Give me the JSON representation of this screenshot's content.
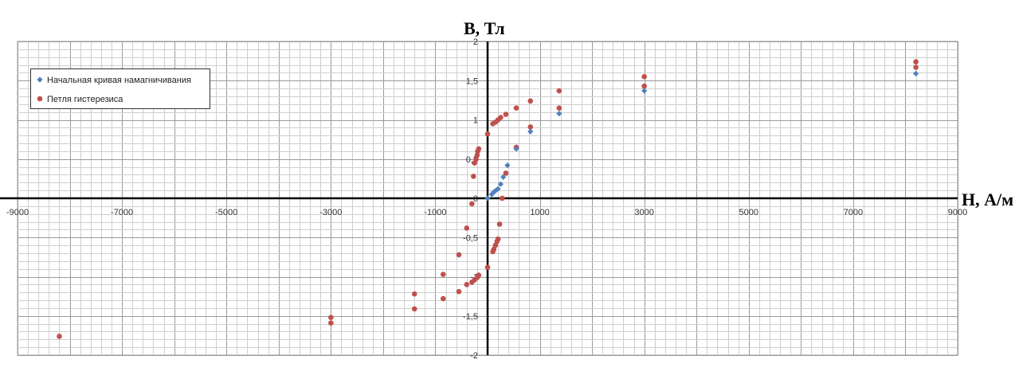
{
  "chart_data": {
    "type": "scatter",
    "title": "",
    "xlabel": "H, А/м",
    "ylabel": "B, Тл",
    "xlim": [
      -9000,
      9000
    ],
    "ylim": [
      -2,
      2
    ],
    "x_tick_labels": [
      "-9000",
      "-7000",
      "-5000",
      "-3000",
      "-1000",
      "1000",
      "3000",
      "5000",
      "7000",
      "9000"
    ],
    "y_tick_labels": [
      "2",
      "1,5",
      "1",
      "0,5",
      "0",
      "-0,5",
      "-1",
      "-1,5",
      "-2"
    ],
    "grid": true,
    "legend_position": "top-left",
    "series": [
      {
        "name": "Начальная кривая намагничивания",
        "marker": "diamond",
        "color": "#4f81bd",
        "points": [
          [
            0,
            0
          ],
          [
            80,
            0.05
          ],
          [
            120,
            0.08
          ],
          [
            160,
            0.1
          ],
          [
            200,
            0.12
          ],
          [
            250,
            0.18
          ],
          [
            300,
            0.27
          ],
          [
            380,
            0.42
          ],
          [
            550,
            0.63
          ],
          [
            820,
            0.85
          ],
          [
            1370,
            1.08
          ],
          [
            3000,
            1.37
          ],
          [
            8200,
            1.59
          ]
        ]
      },
      {
        "name": "Петля гистерезиса",
        "marker": "circle",
        "color": "#c0504d",
        "points": [
          [
            8200,
            1.74
          ],
          [
            8200,
            1.67
          ],
          [
            3000,
            1.55
          ],
          [
            3000,
            1.43
          ],
          [
            1370,
            1.37
          ],
          [
            1370,
            1.15
          ],
          [
            820,
            1.24
          ],
          [
            820,
            0.91
          ],
          [
            550,
            1.15
          ],
          [
            550,
            0.65
          ],
          [
            350,
            1.07
          ],
          [
            250,
            1.03
          ],
          [
            200,
            1.0
          ],
          [
            150,
            0.97
          ],
          [
            100,
            0.95
          ],
          [
            0,
            0.82
          ],
          [
            -170,
            0.63
          ],
          [
            -190,
            0.6
          ],
          [
            -200,
            0.55
          ],
          [
            -220,
            0.5
          ],
          [
            -250,
            0.45
          ],
          [
            -270,
            0.28
          ],
          [
            -300,
            -0.07
          ],
          [
            -400,
            -0.38
          ],
          [
            -550,
            -0.72
          ],
          [
            -850,
            -0.97
          ],
          [
            -850,
            -1.28
          ],
          [
            -1400,
            -1.22
          ],
          [
            -1400,
            -1.41
          ],
          [
            -3000,
            -1.52
          ],
          [
            -3000,
            -1.59
          ],
          [
            -8200,
            -1.76
          ],
          [
            -550,
            -1.19
          ],
          [
            -400,
            -1.1
          ],
          [
            -300,
            -1.07
          ],
          [
            -250,
            -1.04
          ],
          [
            -200,
            -1.01
          ],
          [
            -170,
            -0.98
          ],
          [
            0,
            -0.88
          ],
          [
            100,
            -0.68
          ],
          [
            120,
            -0.65
          ],
          [
            150,
            -0.6
          ],
          [
            180,
            -0.55
          ],
          [
            200,
            -0.52
          ],
          [
            230,
            -0.33
          ],
          [
            280,
            0.0
          ],
          [
            350,
            0.32
          ]
        ]
      }
    ]
  }
}
